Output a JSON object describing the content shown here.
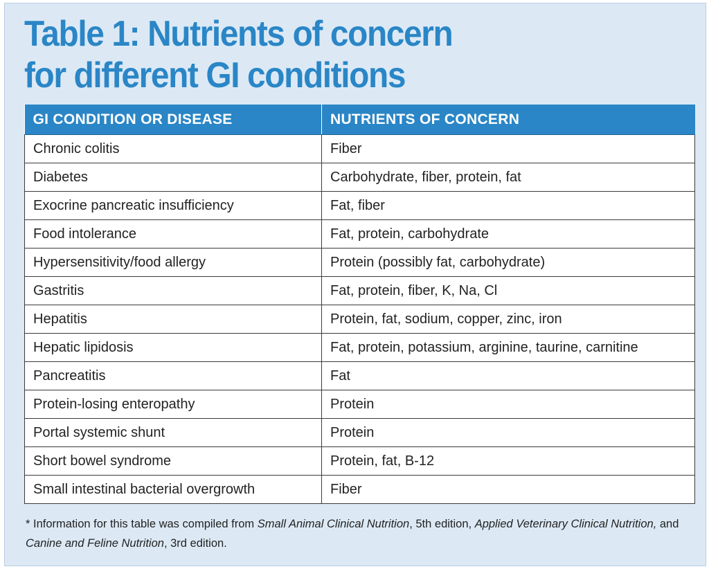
{
  "title": {
    "line1": "Table 1: Nutrients of concern",
    "line2": "for different GI conditions"
  },
  "table": {
    "headers": [
      "GI CONDITION OR DISEASE",
      "NUTRIENTS OF CONCERN"
    ],
    "rows": [
      [
        "Chronic colitis",
        "Fiber"
      ],
      [
        "Diabetes",
        "Carbohydrate, fiber, protein, fat"
      ],
      [
        "Exocrine pancreatic insufficiency",
        "Fat, fiber"
      ],
      [
        "Food intolerance",
        "Fat, protein, carbohydrate"
      ],
      [
        "Hypersensitivity/food allergy",
        "Protein (possibly fat, carbohydrate)"
      ],
      [
        "Gastritis",
        "Fat, protein, fiber, K, Na, Cl"
      ],
      [
        "Hepatitis",
        "Protein, fat, sodium, copper, zinc, iron"
      ],
      [
        "Hepatic lipidosis",
        "Fat, protein, potassium, arginine, taurine, carnitine"
      ],
      [
        "Pancreatitis",
        "Fat"
      ],
      [
        "Protein-losing enteropathy",
        "Protein"
      ],
      [
        "Portal systemic shunt",
        "Protein"
      ],
      [
        "Short bowel syndrome",
        "Protein, fat, B-12"
      ],
      [
        "Small intestinal bacterial overgrowth",
        "Fiber"
      ]
    ]
  },
  "footnote": {
    "prefix": "* Information for this table was compiled from ",
    "source1": "Small Animal Clinical Nutrition",
    "sep1": ", 5th edition, ",
    "source2": "Applied Veterinary Clinical Nutrition,",
    "sep2": " and ",
    "source3": "Canine and Feline Nutrition",
    "suffix": ", 3rd edition."
  },
  "colors": {
    "accent": "#2a86c6",
    "panel_background": "#dce9f5"
  }
}
